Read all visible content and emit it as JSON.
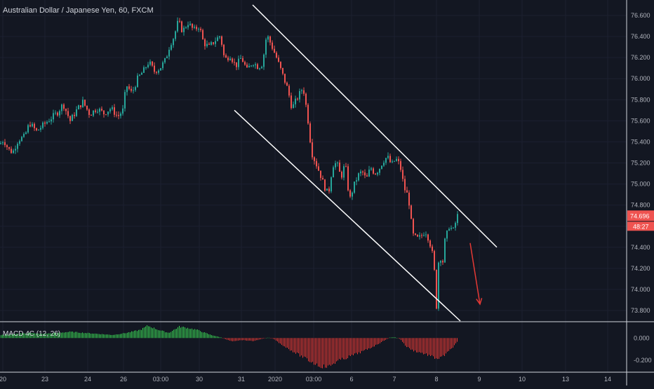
{
  "chart_data": {
    "type": "candlestick",
    "title": "Australian Dollar / Japanese Yen, 60, FXCM",
    "price_scale": {
      "ticks": [
        "76.600",
        "76.400",
        "76.200",
        "76.000",
        "75.800",
        "75.600",
        "75.400",
        "75.200",
        "75.000",
        "74.800",
        "74.600",
        "74.400",
        "74.200",
        "74.000",
        "73.800"
      ],
      "range": [
        73.7,
        76.72
      ]
    },
    "last_price": "74.696",
    "countdown": "48:27",
    "time_axis": [
      "20",
      "23",
      "24",
      "26",
      "03:00",
      "30",
      "31",
      "2020",
      "03:00",
      "6",
      "7",
      "8",
      "9",
      "10",
      "13",
      "14"
    ],
    "candles_close_path": [
      [
        0,
        75.38
      ],
      [
        5,
        75.42
      ],
      [
        12,
        75.33
      ],
      [
        18,
        75.3
      ],
      [
        26,
        75.42
      ],
      [
        35,
        75.45
      ],
      [
        42,
        75.58
      ],
      [
        52,
        75.5
      ],
      [
        60,
        75.55
      ],
      [
        70,
        75.61
      ],
      [
        82,
        75.68
      ],
      [
        90,
        75.76
      ],
      [
        100,
        75.6
      ],
      [
        110,
        75.71
      ],
      [
        118,
        75.78
      ],
      [
        128,
        75.66
      ],
      [
        138,
        75.72
      ],
      [
        148,
        75.67
      ],
      [
        158,
        75.72
      ],
      [
        168,
        75.64
      ],
      [
        175,
        75.7
      ],
      [
        180,
        75.94
      ],
      [
        188,
        75.86
      ],
      [
        196,
        76.0
      ],
      [
        205,
        76.08
      ],
      [
        212,
        76.16
      ],
      [
        220,
        76.07
      ],
      [
        228,
        76.1
      ],
      [
        236,
        76.18
      ],
      [
        242,
        76.32
      ],
      [
        248,
        76.4
      ],
      [
        254,
        76.55
      ],
      [
        260,
        76.45
      ],
      [
        268,
        76.53
      ],
      [
        276,
        76.46
      ],
      [
        284,
        76.5
      ],
      [
        290,
        76.34
      ],
      [
        298,
        76.3
      ],
      [
        306,
        76.36
      ],
      [
        314,
        76.41
      ],
      [
        320,
        76.18
      ],
      [
        328,
        76.22
      ],
      [
        336,
        76.12
      ],
      [
        344,
        76.2
      ],
      [
        352,
        76.08
      ],
      [
        360,
        76.16
      ],
      [
        368,
        76.11
      ],
      [
        374,
        76.14
      ],
      [
        380,
        76.42
      ],
      [
        386,
        76.33
      ],
      [
        394,
        76.2
      ],
      [
        402,
        76.05
      ],
      [
        410,
        75.9
      ],
      [
        416,
        75.72
      ],
      [
        424,
        75.82
      ],
      [
        432,
        75.92
      ],
      [
        438,
        75.66
      ],
      [
        444,
        75.3
      ],
      [
        450,
        75.2
      ],
      [
        456,
        75.1
      ],
      [
        462,
        74.98
      ],
      [
        468,
        74.9
      ],
      [
        474,
        75.18
      ],
      [
        480,
        75.2
      ],
      [
        486,
        75.06
      ],
      [
        492,
        75.2
      ],
      [
        498,
        74.84
      ],
      [
        504,
        74.98
      ],
      [
        510,
        75.08
      ],
      [
        516,
        75.12
      ],
      [
        522,
        75.04
      ],
      [
        528,
        75.16
      ],
      [
        534,
        75.1
      ],
      [
        540,
        75.14
      ],
      [
        546,
        75.22
      ],
      [
        552,
        75.26
      ],
      [
        558,
        75.18
      ],
      [
        564,
        75.24
      ],
      [
        570,
        75.18
      ],
      [
        576,
        74.96
      ],
      [
        582,
        74.88
      ],
      [
        588,
        74.52
      ],
      [
        594,
        74.48
      ],
      [
        600,
        74.5
      ],
      [
        606,
        74.56
      ],
      [
        612,
        74.46
      ],
      [
        618,
        74.28
      ],
      [
        622,
        73.84
      ],
      [
        626,
        74.4
      ],
      [
        630,
        74.2
      ],
      [
        634,
        74.46
      ],
      [
        640,
        74.6
      ],
      [
        646,
        74.56
      ],
      [
        652,
        74.7
      ]
    ],
    "channel_lines": [
      {
        "from": [
          360,
          76.7
        ],
        "to": [
          708,
          74.4
        ]
      },
      {
        "from": [
          334,
          75.7
        ],
        "to": [
          656,
          73.7
        ]
      }
    ],
    "forecast_arrow": {
      "from": [
        670,
        74.44
      ],
      "to": [
        684,
        73.86
      ]
    },
    "indicator": {
      "name": "MACD 4C (12, 26)",
      "ticks": [
        "0.000",
        "-0.200"
      ],
      "range": [
        -0.3,
        0.14
      ],
      "histogram_envelope": [
        [
          0,
          0.03
        ],
        [
          20,
          0.04
        ],
        [
          40,
          0.05
        ],
        [
          60,
          0.04
        ],
        [
          80,
          0.05
        ],
        [
          100,
          0.06
        ],
        [
          120,
          0.05
        ],
        [
          140,
          0.04
        ],
        [
          160,
          0.03
        ],
        [
          180,
          0.05
        ],
        [
          200,
          0.08
        ],
        [
          210,
          0.12
        ],
        [
          225,
          0.08
        ],
        [
          240,
          0.05
        ],
        [
          255,
          0.11
        ],
        [
          265,
          0.1
        ],
        [
          280,
          0.08
        ],
        [
          300,
          0.03
        ],
        [
          315,
          0.005
        ],
        [
          320,
          -0.01
        ],
        [
          330,
          -0.03
        ],
        [
          345,
          -0.02
        ],
        [
          360,
          -0.03
        ],
        [
          372,
          -0.01
        ],
        [
          382,
          0.005
        ],
        [
          390,
          -0.01
        ],
        [
          400,
          -0.06
        ],
        [
          412,
          -0.11
        ],
        [
          425,
          -0.16
        ],
        [
          440,
          -0.22
        ],
        [
          455,
          -0.27
        ],
        [
          468,
          -0.28
        ],
        [
          478,
          -0.23
        ],
        [
          490,
          -0.2
        ],
        [
          505,
          -0.16
        ],
        [
          520,
          -0.12
        ],
        [
          535,
          -0.07
        ],
        [
          548,
          -0.02
        ],
        [
          555,
          0.005
        ],
        [
          562,
          0.008
        ],
        [
          570,
          -0.01
        ],
        [
          578,
          -0.08
        ],
        [
          588,
          -0.12
        ],
        [
          598,
          -0.14
        ],
        [
          608,
          -0.16
        ],
        [
          618,
          -0.19
        ],
        [
          626,
          -0.2
        ],
        [
          636,
          -0.15
        ],
        [
          646,
          -0.08
        ],
        [
          652,
          -0.03
        ]
      ]
    },
    "colors": {
      "background": "#131722",
      "grid": "#1c2030",
      "up": "#26a69a",
      "down": "#ef5350",
      "macd_up": "#39d353",
      "macd_down": "#e53935",
      "channel": "#ffffff",
      "arrow": "#e53935",
      "price_tag": "#ef5350",
      "axis_text": "#b2b5be"
    }
  }
}
